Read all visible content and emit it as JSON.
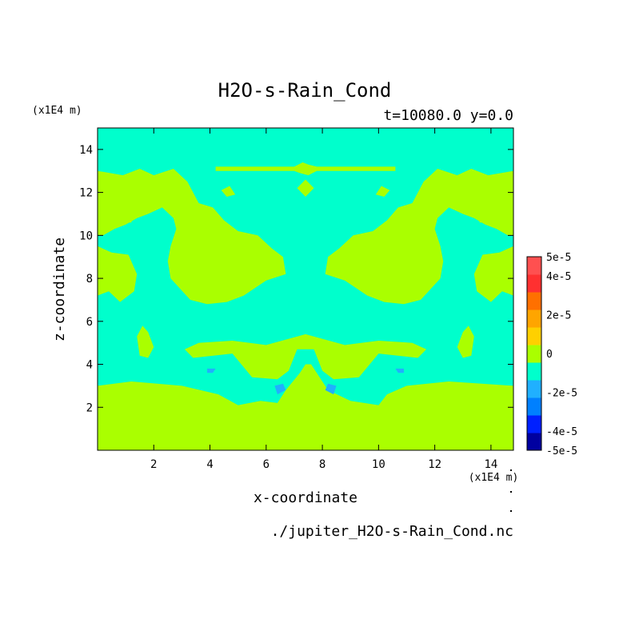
{
  "chart_data": {
    "type": "heatmap",
    "title": "H2O-s-Rain_Cond",
    "subtitle": "t=10080.0 y=0.0",
    "xlabel": "x-coordinate",
    "ylabel": "z-coordinate",
    "x_unit": "(x1E4 m)",
    "y_unit": "(x1E4 m)",
    "footer": "./jupiter_H2O-s-Rain_Cond.nc",
    "xlim": [
      0.0,
      14.8
    ],
    "ylim": [
      0.0,
      15.0
    ],
    "x_ticks": [
      "2",
      "4",
      "6",
      "8",
      "10",
      "12",
      "14"
    ],
    "y_ticks": [
      "2",
      "4",
      "6",
      "8",
      "10",
      "12",
      "14"
    ],
    "colorbar": {
      "tick_labels": [
        "5e-5",
        "4e-5",
        "2e-5",
        "0",
        "-2e-5",
        "-4e-5",
        "-5e-5"
      ],
      "colors": [
        "#0000a0",
        "#0020ff",
        "#0080ff",
        "#20b0ff",
        "#00ffcc",
        "#aaff00",
        "#ffd000",
        "#ffa500",
        "#ff7000",
        "#ff3030",
        "#ff5050"
      ],
      "value_bounds": [
        -5e-05,
        5e-05
      ]
    },
    "fill_colors": {
      "background_class": "#00ffcc",
      "positive_class": "#aaff00",
      "negative_class": "#20b0ff"
    },
    "regions": [
      {
        "cls": "positive",
        "points": [
          [
            0,
            0
          ],
          [
            14.8,
            0
          ],
          [
            14.8,
            3
          ],
          [
            12.5,
            3.2
          ],
          [
            11,
            3
          ],
          [
            10.3,
            2.6
          ],
          [
            10,
            2.1
          ],
          [
            9,
            2.3
          ],
          [
            8.2,
            2.8
          ],
          [
            7.6,
            4
          ],
          [
            7.4,
            4
          ],
          [
            7.2,
            3.6
          ],
          [
            6.7,
            2.8
          ],
          [
            6.4,
            2.2
          ],
          [
            5.8,
            2.3
          ],
          [
            5,
            2.1
          ],
          [
            4.3,
            2.6
          ],
          [
            3,
            3
          ],
          [
            1.2,
            3.2
          ],
          [
            0,
            3
          ]
        ]
      },
      {
        "cls": "positive",
        "points": [
          [
            3.4,
            4.3
          ],
          [
            4.8,
            4.5
          ],
          [
            5.5,
            3.4
          ],
          [
            6.4,
            3.3
          ],
          [
            6.8,
            3.7
          ],
          [
            7.1,
            4.7
          ],
          [
            7.7,
            4.7
          ],
          [
            8,
            3.7
          ],
          [
            8.4,
            3.3
          ],
          [
            9.3,
            3.4
          ],
          [
            10,
            4.5
          ],
          [
            11.4,
            4.3
          ],
          [
            11.7,
            4.7
          ],
          [
            11.2,
            5
          ],
          [
            10,
            5.1
          ],
          [
            8.8,
            4.9
          ],
          [
            7.4,
            5.4
          ],
          [
            6,
            4.9
          ],
          [
            4.8,
            5.1
          ],
          [
            3.6,
            5
          ],
          [
            3.1,
            4.7
          ]
        ]
      },
      {
        "cls": "positive",
        "points": [
          [
            0,
            13
          ],
          [
            0.9,
            12.8
          ],
          [
            1.5,
            13.1
          ],
          [
            2,
            12.8
          ],
          [
            2.7,
            13.1
          ],
          [
            3.2,
            12.5
          ],
          [
            3.6,
            11.5
          ],
          [
            4.1,
            11.3
          ],
          [
            4.5,
            10.7
          ],
          [
            5,
            10.2
          ],
          [
            5.7,
            10
          ],
          [
            6.2,
            9.4
          ],
          [
            6.6,
            9
          ],
          [
            6.7,
            8.2
          ],
          [
            6,
            7.9
          ],
          [
            5.2,
            7.2
          ],
          [
            4.6,
            6.9
          ],
          [
            3.9,
            6.8
          ],
          [
            3.3,
            7
          ],
          [
            2.6,
            8
          ],
          [
            2.5,
            8.8
          ],
          [
            2.6,
            9.5
          ],
          [
            2.8,
            10.3
          ],
          [
            2.7,
            10.8
          ],
          [
            2.3,
            11.3
          ],
          [
            1.8,
            11
          ],
          [
            1.4,
            10.8
          ],
          [
            1,
            10.5
          ],
          [
            0.6,
            10.3
          ],
          [
            0.2,
            10
          ],
          [
            0,
            10
          ]
        ]
      },
      {
        "cls": "positive",
        "points": [
          [
            0,
            9.5
          ],
          [
            0.5,
            9.2
          ],
          [
            1.1,
            9.1
          ],
          [
            1.4,
            8.2
          ],
          [
            1.3,
            7.4
          ],
          [
            0.8,
            6.9
          ],
          [
            0.4,
            7.4
          ],
          [
            0,
            7.2
          ]
        ]
      },
      {
        "cls": "positive",
        "points": [
          [
            14.8,
            13
          ],
          [
            13.9,
            12.8
          ],
          [
            13.3,
            13.1
          ],
          [
            12.8,
            12.8
          ],
          [
            12.1,
            13.1
          ],
          [
            11.6,
            12.5
          ],
          [
            11.2,
            11.5
          ],
          [
            10.7,
            11.3
          ],
          [
            10.3,
            10.7
          ],
          [
            9.8,
            10.2
          ],
          [
            9.1,
            10
          ],
          [
            8.6,
            9.4
          ],
          [
            8.2,
            9
          ],
          [
            8.1,
            8.2
          ],
          [
            8.8,
            7.9
          ],
          [
            9.6,
            7.2
          ],
          [
            10.2,
            6.9
          ],
          [
            10.9,
            6.8
          ],
          [
            11.5,
            7
          ],
          [
            12.2,
            8
          ],
          [
            12.3,
            8.8
          ],
          [
            12.2,
            9.5
          ],
          [
            12,
            10.3
          ],
          [
            12.1,
            10.8
          ],
          [
            12.5,
            11.3
          ],
          [
            13,
            11
          ],
          [
            13.4,
            10.8
          ],
          [
            13.8,
            10.5
          ],
          [
            14.2,
            10.3
          ],
          [
            14.6,
            10
          ],
          [
            14.8,
            10
          ]
        ]
      },
      {
        "cls": "positive",
        "points": [
          [
            14.8,
            9.5
          ],
          [
            14.3,
            9.2
          ],
          [
            13.7,
            9.1
          ],
          [
            13.4,
            8.2
          ],
          [
            13.5,
            7.4
          ],
          [
            14,
            6.9
          ],
          [
            14.4,
            7.4
          ],
          [
            14.8,
            7.2
          ]
        ]
      },
      {
        "cls": "positive",
        "points": [
          [
            1.4,
            5.3
          ],
          [
            1.6,
            5.8
          ],
          [
            1.8,
            5.5
          ],
          [
            2,
            4.8
          ],
          [
            1.8,
            4.3
          ],
          [
            1.5,
            4.4
          ]
        ]
      },
      {
        "cls": "positive",
        "points": [
          [
            13.4,
            5.3
          ],
          [
            13.2,
            5.8
          ],
          [
            13,
            5.5
          ],
          [
            12.8,
            4.8
          ],
          [
            13,
            4.3
          ],
          [
            13.3,
            4.4
          ]
        ]
      },
      {
        "cls": "positive",
        "points": [
          [
            4.2,
            13.2
          ],
          [
            7,
            13.2
          ],
          [
            7.3,
            13.4
          ],
          [
            7.5,
            13.3
          ],
          [
            7.8,
            13.2
          ],
          [
            10.6,
            13.2
          ],
          [
            10.6,
            13
          ],
          [
            7.8,
            13.0
          ],
          [
            7.5,
            12.8
          ],
          [
            7.2,
            12.9
          ],
          [
            7,
            13.0
          ],
          [
            4.2,
            13
          ]
        ]
      },
      {
        "cls": "positive",
        "points": [
          [
            7.1,
            12.2
          ],
          [
            7.4,
            12.6
          ],
          [
            7.7,
            12.2
          ],
          [
            7.4,
            11.8
          ]
        ]
      },
      {
        "cls": "positive",
        "points": [
          [
            4.4,
            12.1
          ],
          [
            4.7,
            12.3
          ],
          [
            4.9,
            11.9
          ],
          [
            4.6,
            11.8
          ]
        ]
      },
      {
        "cls": "positive",
        "points": [
          [
            10.4,
            12.1
          ],
          [
            10.1,
            12.3
          ],
          [
            9.9,
            11.9
          ],
          [
            10.2,
            11.8
          ]
        ]
      },
      {
        "cls": "positive",
        "points": [
          [
            0.9,
            10.9
          ],
          [
            1.3,
            11.1
          ],
          [
            1.2,
            10.6
          ],
          [
            0.9,
            10.6
          ]
        ]
      },
      {
        "cls": "positive",
        "points": [
          [
            13.9,
            10.9
          ],
          [
            13.5,
            11.1
          ],
          [
            13.6,
            10.6
          ],
          [
            13.9,
            10.6
          ]
        ]
      },
      {
        "cls": "negative",
        "points": [
          [
            6.3,
            3.0
          ],
          [
            6.6,
            3.1
          ],
          [
            6.7,
            2.8
          ],
          [
            6.4,
            2.6
          ]
        ]
      },
      {
        "cls": "negative",
        "points": [
          [
            8.5,
            3.0
          ],
          [
            8.2,
            3.1
          ],
          [
            8.1,
            2.8
          ],
          [
            8.4,
            2.6
          ]
        ]
      },
      {
        "cls": "negative",
        "points": [
          [
            3.9,
            3.8
          ],
          [
            4.2,
            3.8
          ],
          [
            4.1,
            3.6
          ],
          [
            3.9,
            3.6
          ]
        ]
      },
      {
        "cls": "negative",
        "points": [
          [
            10.9,
            3.8
          ],
          [
            10.6,
            3.8
          ],
          [
            10.7,
            3.6
          ],
          [
            10.9,
            3.6
          ]
        ]
      }
    ]
  }
}
